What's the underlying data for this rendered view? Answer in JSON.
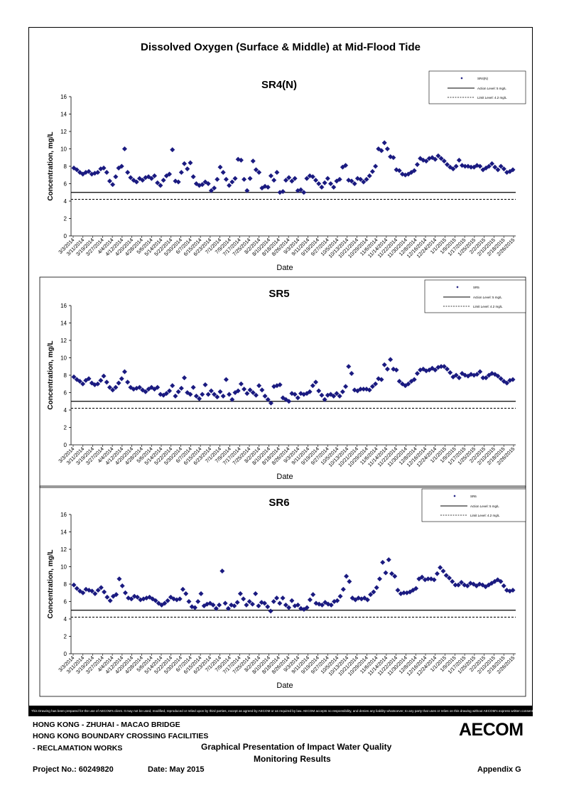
{
  "page": {
    "main_title": "Dissolved Oxygen (Surface & Middle) at Mid-Flood Tide",
    "disclaimer": "This Drawing has been prepared for the use of AECOM's client. It may not be used, modified, reproduced or relied upon by third parties, except as agreed by AECOM or as required by law. AECOM accepts no responsibility, and denies any liability whatsoever, to any party that uses or relies on this drawing without AECOM's express written consent.",
    "project_line1": "HONG KONG - ZHUHAI - MACAO BRIDGE",
    "project_line2": "HONG KONG BOUNDARY CROSSING FACILITIES",
    "project_line3": "- RECLAMATION WORKS",
    "drawing_title_line1": "Graphical Presentation of Impact Water Quality",
    "drawing_title_line2": "Monitoring Results",
    "project_no": "Project No.: 60249820",
    "date": "Date: May 2015",
    "appendix": "Appendix G",
    "logo": "AECOM"
  },
  "chart_data": [
    {
      "type": "scatter",
      "title": "SR4(N)",
      "xlabel": "Date",
      "ylabel": "Concentration, mg/L",
      "ylim": [
        0,
        16
      ],
      "yticks": [
        0,
        2,
        4,
        6,
        8,
        10,
        12,
        14,
        16
      ],
      "xticks": [
        "3/3/2014",
        "3/11/2014",
        "3/19/2014",
        "3/27/2014",
        "4/4/2014",
        "4/12/2014",
        "4/20/2014",
        "4/28/2014",
        "5/6/2014",
        "5/14/2014",
        "5/22/2014",
        "5/30/2014",
        "6/7/2014",
        "6/15/2014",
        "6/23/2014",
        "7/1/2014",
        "7/9/2014",
        "7/17/2014",
        "7/25/2014",
        "8/2/2014",
        "8/10/2014",
        "8/18/2014",
        "8/26/2014",
        "9/3/2014",
        "9/11/2014",
        "9/19/2014",
        "9/27/2014",
        "10/5/2014",
        "10/13/2014",
        "10/21/2014",
        "10/29/2014",
        "11/6/2014",
        "11/14/2014",
        "11/22/2014",
        "11/30/2014",
        "12/8/2014",
        "12/16/2014",
        "12/24/2014",
        "1/1/2015",
        "1/9/2015",
        "1/17/2015",
        "1/25/2015",
        "2/2/2015",
        "2/10/2015",
        "2/18/2015",
        "2/26/2015"
      ],
      "legend": [
        "SR4(N)",
        "Action Level: 5 mg/L",
        "Limit Level: 4.2 mg/L"
      ],
      "action_level": 5,
      "limit_level": 4.2,
      "grid": false,
      "legend_position": "top-right",
      "marker_color": "#1a1a80",
      "values": [
        7.8,
        7.6,
        7.3,
        7.1,
        7.3,
        7.4,
        7.1,
        7.2,
        7.3,
        7.7,
        7.8,
        7.3,
        6.3,
        5.9,
        6.8,
        7.8,
        8.0,
        10.0,
        7.3,
        6.7,
        6.4,
        6.2,
        6.6,
        6.4,
        6.7,
        6.8,
        6.6,
        6.9,
        6.1,
        5.8,
        6.4,
        6.9,
        7.1,
        9.9,
        6.3,
        6.2,
        7.3,
        8.3,
        7.7,
        8.4,
        6.8,
        6.0,
        5.8,
        5.9,
        6.2,
        6.0,
        5.2,
        5.5,
        6.5,
        7.9,
        7.3,
        6.5,
        5.8,
        6.2,
        6.6,
        8.8,
        8.7,
        6.5,
        5.2,
        6.6,
        8.6,
        7.6,
        7.3,
        5.5,
        5.7,
        5.6,
        6.9,
        6.4,
        7.3,
        5.0,
        5.1,
        6.4,
        6.7,
        6.3,
        6.6,
        5.2,
        5.3,
        5.0,
        6.6,
        6.9,
        6.8,
        6.4,
        6.0,
        5.6,
        6.1,
        6.6,
        6.0,
        5.6,
        6.3,
        6.5,
        7.9,
        8.1,
        6.4,
        6.3,
        6.0,
        6.6,
        6.5,
        6.2,
        6.5,
        6.9,
        7.4,
        8.0,
        10.0,
        9.8,
        10.7,
        10.0,
        9.1,
        9.0,
        7.6,
        7.5,
        7.1,
        7.0,
        7.1,
        7.3,
        7.5,
        8.2,
        8.9,
        8.7,
        8.6,
        8.9,
        9.0,
        8.8,
        9.2,
        8.9,
        8.6,
        8.2,
        7.9,
        7.7,
        8.0,
        8.7,
        8.1,
        8.0,
        8.0,
        7.9,
        7.9,
        8.1,
        8.0,
        7.6,
        7.8,
        8.0,
        8.3,
        7.9,
        7.6,
        8.0,
        7.7,
        7.3,
        7.4,
        7.6
      ]
    },
    {
      "type": "scatter",
      "title": "SR5",
      "xlabel": "Date",
      "ylabel": "Concentration, mg/L",
      "ylim": [
        0,
        16
      ],
      "yticks": [
        0,
        2,
        4,
        6,
        8,
        10,
        12,
        14,
        16
      ],
      "xticks": [
        "3/3/2014",
        "3/11/2014",
        "3/19/2014",
        "3/27/2014",
        "4/4/2014",
        "4/12/2014",
        "4/20/2014",
        "4/28/2014",
        "5/6/2014",
        "5/14/2014",
        "5/22/2014",
        "5/30/2014",
        "6/7/2014",
        "6/15/2014",
        "6/23/2014",
        "7/1/2014",
        "7/9/2014",
        "7/17/2014",
        "7/25/2014",
        "8/2/2014",
        "8/10/2014",
        "8/18/2014",
        "8/26/2014",
        "9/3/2014",
        "9/11/2014",
        "9/19/2014",
        "9/27/2014",
        "10/5/2014",
        "10/13/2014",
        "10/21/2014",
        "10/29/2014",
        "11/6/2014",
        "11/14/2014",
        "11/22/2014",
        "11/30/2014",
        "12/8/2014",
        "12/16/2014",
        "12/24/2014",
        "1/1/2015",
        "1/9/2015",
        "1/17/2015",
        "1/25/2015",
        "2/2/2015",
        "2/10/2015",
        "2/18/2015",
        "2/26/2015"
      ],
      "legend": [
        "SR5",
        "Action Level: 5 mg/L",
        "Limit Level: 4.2 mg/L"
      ],
      "action_level": 5,
      "limit_level": 4.2,
      "grid": false,
      "legend_position": "top-right",
      "marker_color": "#1a1a80",
      "values": [
        7.8,
        7.5,
        7.3,
        7.0,
        7.4,
        7.6,
        7.1,
        6.9,
        7.0,
        7.4,
        7.9,
        7.2,
        6.6,
        6.3,
        6.6,
        7.1,
        7.6,
        8.4,
        7.2,
        6.6,
        6.4,
        6.5,
        6.6,
        6.3,
        6.1,
        6.4,
        6.6,
        6.4,
        6.6,
        5.8,
        5.7,
        5.9,
        6.2,
        6.8,
        5.6,
        6.1,
        6.5,
        7.7,
        6.0,
        5.8,
        6.6,
        5.6,
        5.3,
        5.8,
        6.9,
        5.8,
        6.2,
        5.8,
        5.5,
        6.1,
        5.6,
        7.5,
        5.8,
        5.2,
        6.0,
        6.2,
        7.0,
        6.4,
        5.9,
        6.3,
        6.0,
        5.7,
        6.8,
        6.3,
        5.6,
        5.2,
        4.8,
        6.7,
        6.8,
        6.9,
        5.4,
        5.2,
        5.0,
        5.9,
        5.8,
        5.4,
        5.9,
        5.8,
        5.9,
        6.1,
        6.8,
        7.2,
        6.2,
        5.7,
        5.2,
        5.7,
        5.8,
        5.6,
        5.9,
        5.6,
        6.1,
        6.7,
        9.0,
        8.2,
        6.3,
        6.2,
        6.4,
        6.4,
        6.4,
        6.3,
        6.7,
        7.0,
        7.6,
        7.5,
        9.2,
        8.7,
        9.8,
        8.7,
        8.6,
        7.3,
        7.0,
        6.8,
        7.0,
        7.3,
        7.5,
        8.2,
        8.6,
        8.7,
        8.5,
        8.6,
        8.8,
        8.6,
        8.9,
        9.0,
        9.0,
        8.7,
        8.3,
        7.8,
        8.0,
        7.7,
        8.2,
        8.0,
        7.9,
        8.1,
        8.0,
        8.1,
        8.4,
        7.7,
        7.7,
        8.0,
        8.2,
        8.1,
        7.9,
        7.6,
        7.3,
        7.1,
        7.4,
        7.5
      ]
    },
    {
      "type": "scatter",
      "title": "SR6",
      "xlabel": "Date",
      "ylabel": "Concentration, mg/L",
      "ylim": [
        0,
        16
      ],
      "yticks": [
        0,
        2,
        4,
        6,
        8,
        10,
        12,
        14,
        16
      ],
      "xticks": [
        "3/3/2014",
        "3/11/2014",
        "3/19/2014",
        "3/27/2014",
        "4/4/2014",
        "4/12/2014",
        "4/20/2014",
        "4/28/2014",
        "5/6/2014",
        "5/14/2014",
        "5/22/2014",
        "5/30/2014",
        "6/7/2014",
        "6/15/2014",
        "6/23/2014",
        "7/1/2014",
        "7/9/2014",
        "7/17/2014",
        "7/25/2014",
        "8/2/2014",
        "8/10/2014",
        "8/18/2014",
        "8/26/2014",
        "9/3/2014",
        "9/11/2014",
        "9/19/2014",
        "9/27/2014",
        "10/5/2014",
        "10/13/2014",
        "10/21/2014",
        "10/29/2014",
        "11/6/2014",
        "11/14/2014",
        "11/22/2014",
        "11/30/2014",
        "12/8/2014",
        "12/16/2014",
        "12/24/2014",
        "1/1/2015",
        "1/9/2015",
        "1/17/2015",
        "1/25/2015",
        "2/2/2015",
        "2/10/2015",
        "2/18/2015",
        "2/26/2015"
      ],
      "legend": [
        "SR6",
        "Action Level: 5 mg/L",
        "Limit Level: 4.2 mg/L"
      ],
      "action_level": 5,
      "limit_level": 4.2,
      "grid": false,
      "legend_position": "top-right",
      "marker_color": "#1a1a80",
      "values": [
        7.9,
        7.5,
        7.2,
        7.0,
        7.4,
        7.3,
        7.2,
        6.9,
        7.3,
        7.6,
        7.1,
        6.5,
        6.1,
        6.6,
        6.8,
        8.6,
        7.8,
        7.0,
        6.4,
        6.3,
        6.6,
        6.5,
        6.2,
        6.3,
        6.4,
        6.5,
        6.3,
        6.1,
        5.8,
        5.6,
        5.8,
        6.1,
        6.5,
        6.3,
        6.2,
        6.3,
        7.4,
        6.9,
        6.0,
        5.4,
        5.3,
        6.0,
        6.9,
        5.5,
        5.7,
        5.8,
        5.6,
        5.2,
        5.6,
        9.5,
        5.8,
        5.2,
        5.6,
        5.5,
        5.9,
        6.9,
        6.3,
        5.6,
        6.0,
        5.7,
        6.9,
        5.5,
        5.9,
        5.8,
        5.4,
        4.9,
        6.0,
        6.4,
        5.8,
        6.4,
        5.6,
        5.3,
        6.1,
        5.5,
        5.6,
        5.2,
        5.1,
        5.3,
        6.2,
        6.8,
        5.8,
        5.7,
        5.6,
        5.9,
        5.7,
        5.6,
        6.0,
        6.1,
        6.6,
        7.4,
        8.9,
        8.3,
        6.4,
        6.2,
        6.4,
        6.3,
        6.4,
        6.2,
        6.8,
        7.1,
        7.6,
        8.6,
        10.5,
        9.3,
        10.8,
        9.2,
        8.9,
        7.3,
        6.9,
        7.0,
        7.0,
        7.1,
        7.3,
        7.5,
        8.6,
        8.8,
        8.5,
        8.6,
        8.6,
        8.5,
        9.2,
        9.9,
        9.5,
        9.0,
        8.7,
        8.3,
        7.9,
        7.9,
        8.2,
        7.9,
        7.8,
        8.1,
        8.0,
        7.8,
        8.0,
        7.9,
        7.7,
        7.9,
        8.1,
        8.3,
        8.5,
        8.3,
        7.8,
        7.3,
        7.2,
        7.3
      ]
    }
  ]
}
